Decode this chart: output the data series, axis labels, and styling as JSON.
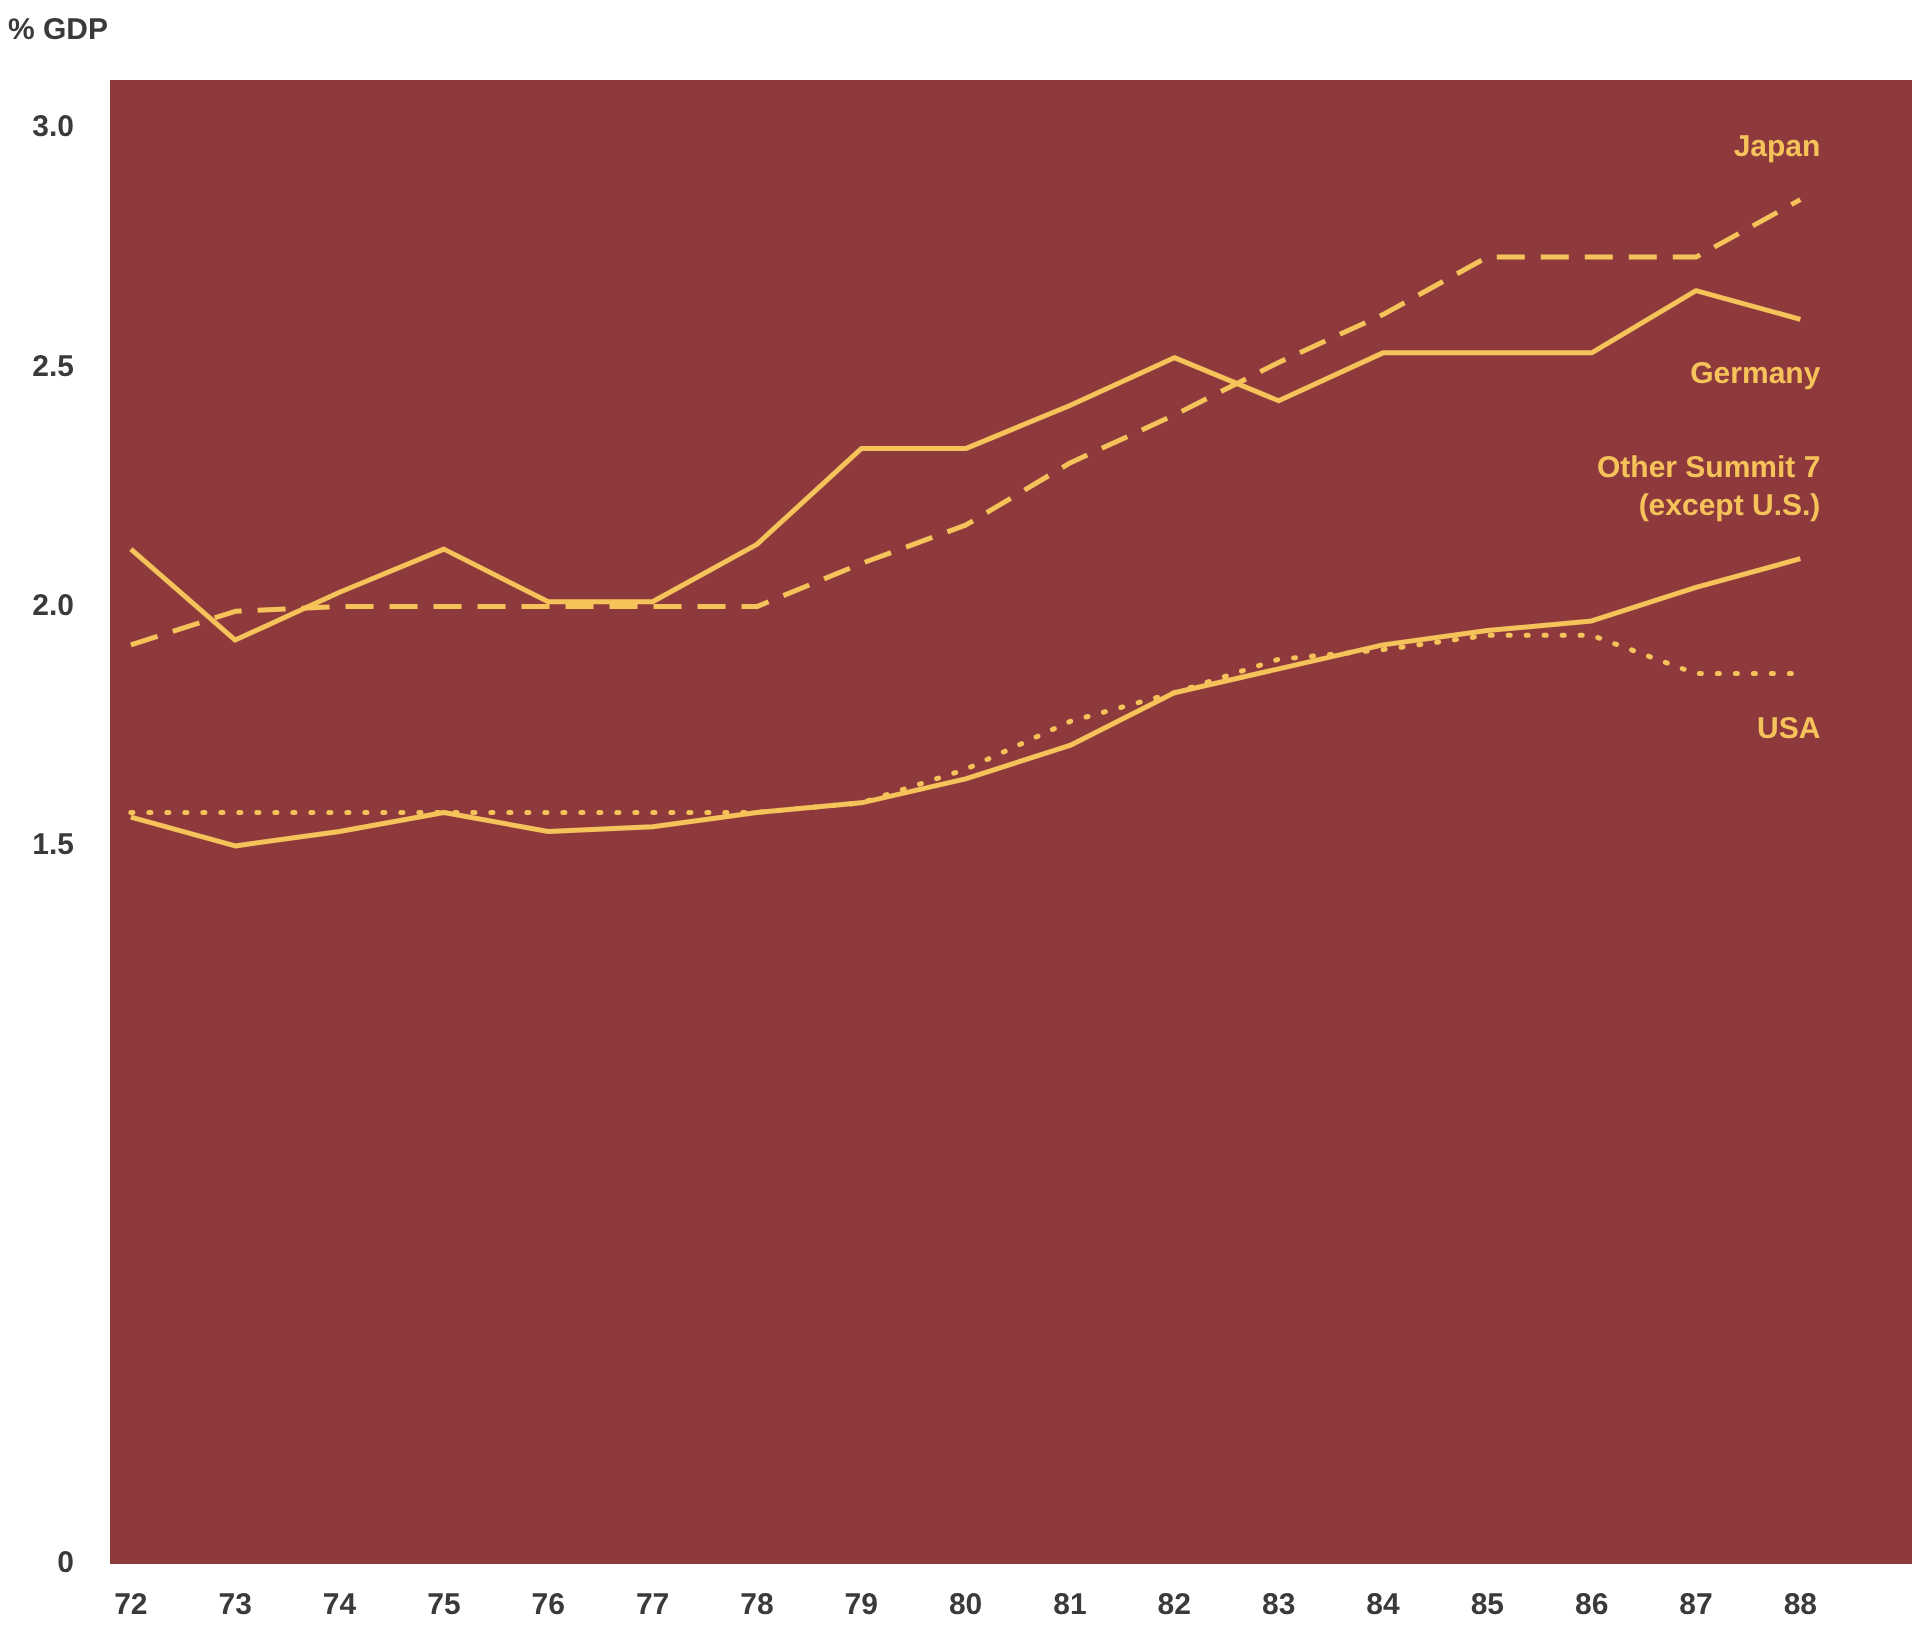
{
  "chart_data": {
    "type": "line",
    "ylabel": "% GDP",
    "x": [
      72,
      73,
      74,
      75,
      76,
      77,
      78,
      79,
      80,
      81,
      82,
      83,
      84,
      85,
      86,
      87,
      88
    ],
    "xlim": [
      71.8,
      89.07
    ],
    "xticks": [
      72,
      73,
      74,
      75,
      76,
      77,
      78,
      79,
      80,
      81,
      82,
      83,
      84,
      85,
      86,
      87,
      88
    ],
    "ylim": [
      0,
      3.1
    ],
    "yticks": [
      0,
      1.5,
      {
        "value": 2,
        "label": "2.0"
      },
      2.5,
      {
        "value": 3,
        "label": "3.0"
      }
    ],
    "grid": false,
    "legend": false,
    "marker": "none",
    "series": [
      {
        "name": "Japan",
        "color": "#f6c35a",
        "line_style": "dashed",
        "values": [
          1.92,
          1.99,
          2.0,
          2.0,
          2.0,
          2.0,
          2.0,
          2.09,
          2.17,
          2.3,
          2.4,
          2.51,
          2.61,
          2.73,
          2.73,
          2.73,
          2.85
        ]
      },
      {
        "name": "Germany",
        "color": "#f6c35a",
        "line_style": "solid",
        "values": [
          2.12,
          1.93,
          2.03,
          2.12,
          2.01,
          2.01,
          2.13,
          2.33,
          2.33,
          2.42,
          2.52,
          2.43,
          2.53,
          2.53,
          2.53,
          2.66,
          2.6
        ]
      },
      {
        "name": "Other Summit 7 (except U.S.)",
        "color": "#f6c35a",
        "line_style": "solid",
        "values": [
          1.56,
          1.5,
          1.53,
          1.57,
          1.53,
          1.54,
          1.57,
          1.59,
          1.64,
          1.71,
          1.82,
          1.87,
          1.92,
          1.95,
          1.97,
          2.04,
          2.1
        ]
      },
      {
        "name": "USA",
        "color": "#f6c35a",
        "line_style": "dotted",
        "values": [
          1.57,
          1.57,
          1.57,
          1.57,
          1.57,
          1.57,
          1.57,
          1.59,
          1.66,
          1.76,
          1.82,
          1.89,
          1.91,
          1.94,
          1.94,
          1.86,
          1.86
        ]
      }
    ]
  }
}
